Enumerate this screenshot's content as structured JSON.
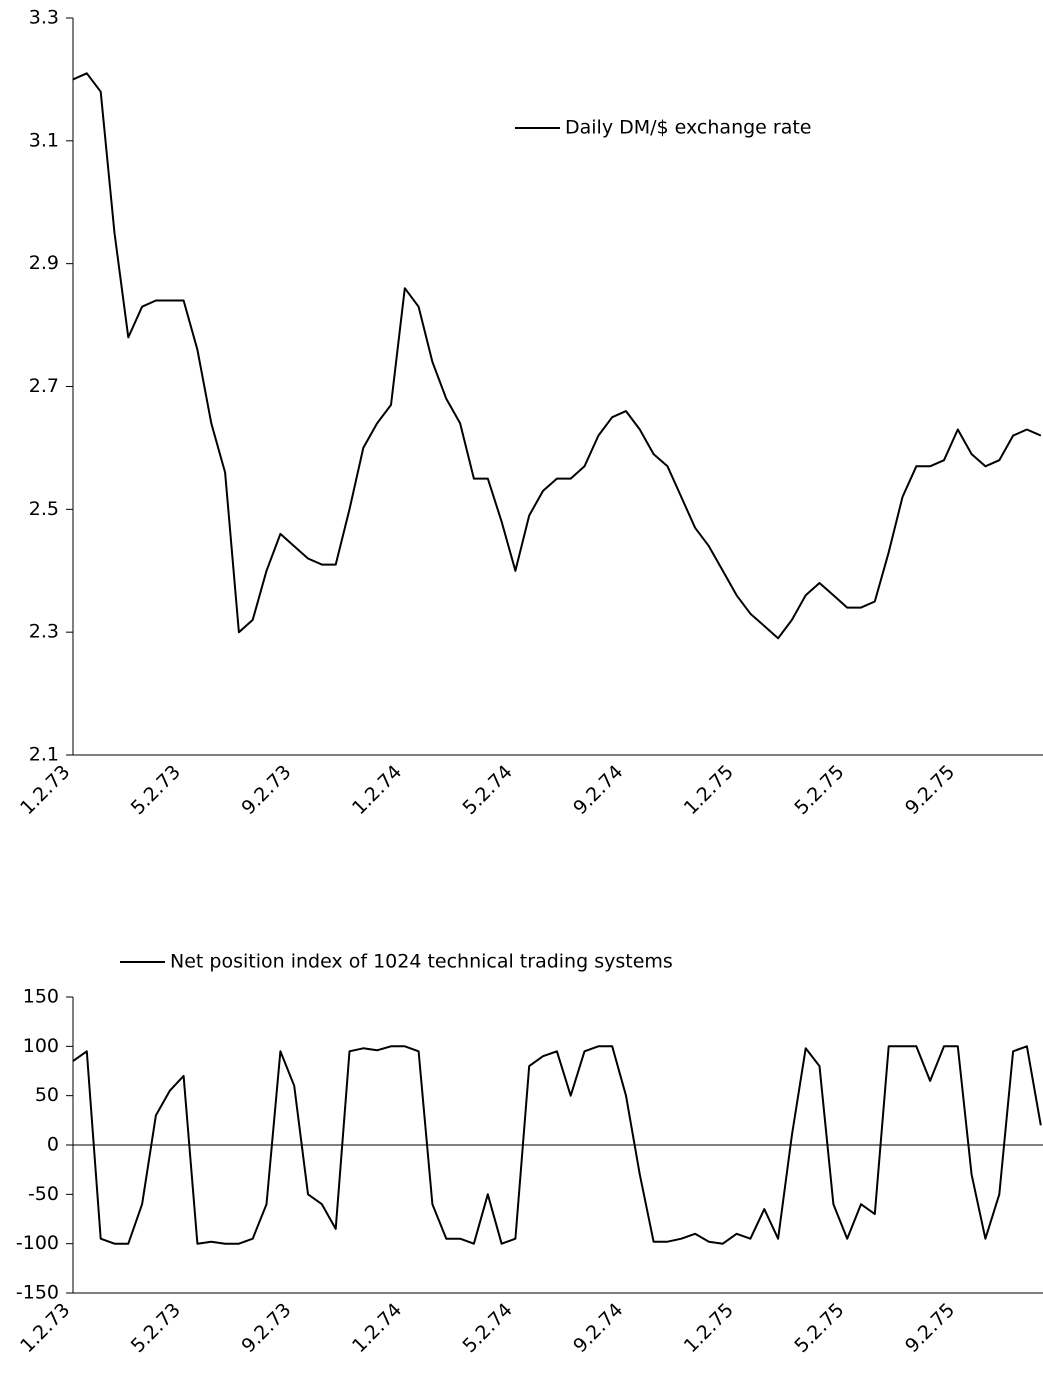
{
  "chart_data": [
    {
      "type": "line",
      "categories": [
        "1.2.73",
        null,
        null,
        null,
        null,
        null,
        null,
        null,
        "5.2.73",
        null,
        null,
        null,
        null,
        null,
        null,
        null,
        "9.2.73",
        null,
        null,
        null,
        null,
        null,
        null,
        null,
        "1.2.74",
        null,
        null,
        null,
        null,
        null,
        null,
        null,
        "5.2.74",
        null,
        null,
        null,
        null,
        null,
        null,
        null,
        "9.2.74",
        null,
        null,
        null,
        null,
        null,
        null,
        null,
        "1.2.75",
        null,
        null,
        null,
        null,
        null,
        null,
        null,
        "5.2.75",
        null,
        null,
        null,
        null,
        null,
        null,
        null,
        "9.2.75",
        null,
        null,
        null,
        null,
        null,
        null
      ],
      "series": [
        {
          "name": "Daily DM/$ exchange rate",
          "color": "#000000",
          "values": [
            3.2,
            3.21,
            3.18,
            2.95,
            2.78,
            2.83,
            2.84,
            2.84,
            2.84,
            2.76,
            2.64,
            2.56,
            2.3,
            2.32,
            2.4,
            2.46,
            2.44,
            2.42,
            2.41,
            2.41,
            2.5,
            2.6,
            2.64,
            2.67,
            2.86,
            2.83,
            2.74,
            2.68,
            2.64,
            2.55,
            2.55,
            2.48,
            2.4,
            2.49,
            2.53,
            2.55,
            2.55,
            2.57,
            2.62,
            2.65,
            2.66,
            2.63,
            2.59,
            2.57,
            2.52,
            2.47,
            2.44,
            2.4,
            2.36,
            2.33,
            2.31,
            2.29,
            2.32,
            2.36,
            2.38,
            2.36,
            2.34,
            2.34,
            2.35,
            2.43,
            2.52,
            2.57,
            2.57,
            2.58,
            2.63,
            2.59,
            2.57,
            2.58,
            2.62,
            2.63,
            2.62
          ]
        }
      ],
      "ylim": [
        2.1,
        3.3
      ],
      "yticks": [
        2.1,
        2.3,
        2.5,
        2.7,
        2.9,
        3.1,
        3.3
      ]
    },
    {
      "type": "line",
      "categories": [
        "1.2.73",
        null,
        null,
        null,
        null,
        null,
        null,
        null,
        "5.2.73",
        null,
        null,
        null,
        null,
        null,
        null,
        null,
        "9.2.73",
        null,
        null,
        null,
        null,
        null,
        null,
        null,
        "1.2.74",
        null,
        null,
        null,
        null,
        null,
        null,
        null,
        "5.2.74",
        null,
        null,
        null,
        null,
        null,
        null,
        null,
        "9.2.74",
        null,
        null,
        null,
        null,
        null,
        null,
        null,
        "1.2.75",
        null,
        null,
        null,
        null,
        null,
        null,
        null,
        "5.2.75",
        null,
        null,
        null,
        null,
        null,
        null,
        null,
        "9.2.75",
        null,
        null,
        null,
        null,
        null,
        null
      ],
      "series": [
        {
          "name": "Net position index of 1024 technical trading systems",
          "color": "#000000",
          "values": [
            85,
            95,
            -95,
            -100,
            -100,
            -60,
            30,
            55,
            70,
            -100,
            -98,
            -100,
            -100,
            -95,
            -60,
            95,
            60,
            -50,
            -60,
            -85,
            95,
            98,
            96,
            100,
            100,
            95,
            -60,
            -95,
            -95,
            -100,
            -50,
            -100,
            -95,
            80,
            90,
            95,
            50,
            95,
            100,
            100,
            50,
            -30,
            -98,
            -98,
            -95,
            -90,
            -98,
            -100,
            -90,
            -95,
            -65,
            -95,
            10,
            98,
            80,
            -60,
            -95,
            -60,
            -70,
            100,
            100,
            100,
            65,
            100,
            100,
            -30,
            -95,
            -50,
            95,
            100,
            20
          ]
        }
      ],
      "ylim": [
        -150,
        150
      ],
      "yticks": [
        -150,
        -100,
        -50,
        0,
        50,
        100,
        150
      ]
    }
  ]
}
